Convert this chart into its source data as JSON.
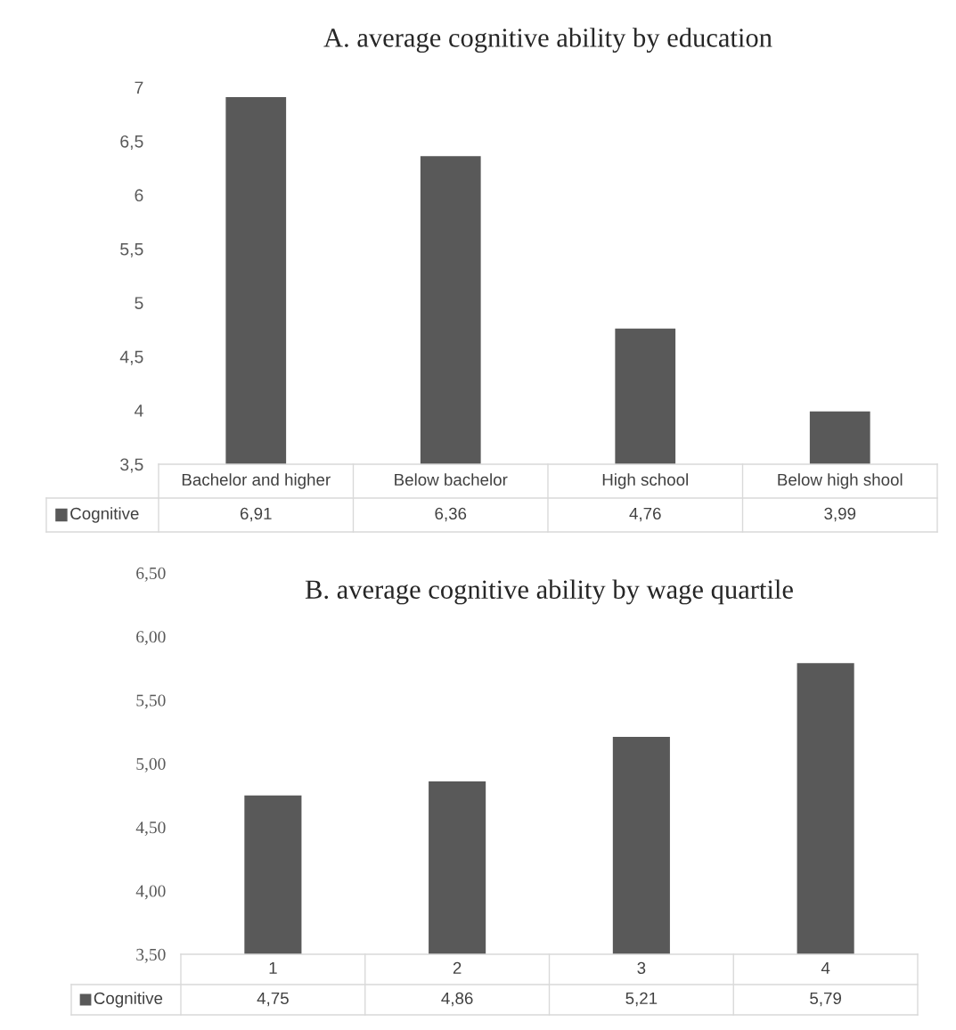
{
  "chart_data": [
    {
      "type": "bar",
      "title": "A. average cognitive ability by education",
      "categories": [
        "Bachelor and higher",
        "Below bachelor",
        "High school",
        "Below high shool"
      ],
      "series": [
        {
          "name": "Cognitive",
          "color": "#595959",
          "values": [
            6.91,
            6.36,
            4.76,
            3.99
          ],
          "value_labels": [
            "6,91",
            "6,36",
            "4,76",
            "3,99"
          ]
        }
      ],
      "ylim": [
        3.5,
        7
      ],
      "yticks": [
        {
          "value": 3.5,
          "label": "3,5"
        },
        {
          "value": 4,
          "label": "4"
        },
        {
          "value": 4.5,
          "label": "4,5"
        },
        {
          "value": 5,
          "label": "5"
        },
        {
          "value": 5.5,
          "label": "5,5"
        },
        {
          "value": 6,
          "label": "6"
        },
        {
          "value": 6.5,
          "label": "6,5"
        },
        {
          "value": 7,
          "label": "7"
        }
      ],
      "legend": "bottom",
      "grid": false
    },
    {
      "type": "bar",
      "title": "B. average cognitive ability by wage quartile",
      "categories": [
        "1",
        "2",
        "3",
        "4"
      ],
      "series": [
        {
          "name": "Cognitive",
          "color": "#595959",
          "values": [
            4.75,
            4.86,
            5.21,
            5.79
          ],
          "value_labels": [
            "4,75",
            "4,86",
            "5,21",
            "5,79"
          ]
        }
      ],
      "ylim": [
        3.5,
        6.5
      ],
      "yticks": [
        {
          "value": 3.5,
          "label": "3,50"
        },
        {
          "value": 4,
          "label": "4,00"
        },
        {
          "value": 4.5,
          "label": "4,50"
        },
        {
          "value": 5,
          "label": "5,00"
        },
        {
          "value": 5.5,
          "label": "5,50"
        },
        {
          "value": 6,
          "label": "6,00"
        },
        {
          "value": 6.5,
          "label": "6,50"
        }
      ],
      "legend": "bottom",
      "grid": false
    }
  ]
}
